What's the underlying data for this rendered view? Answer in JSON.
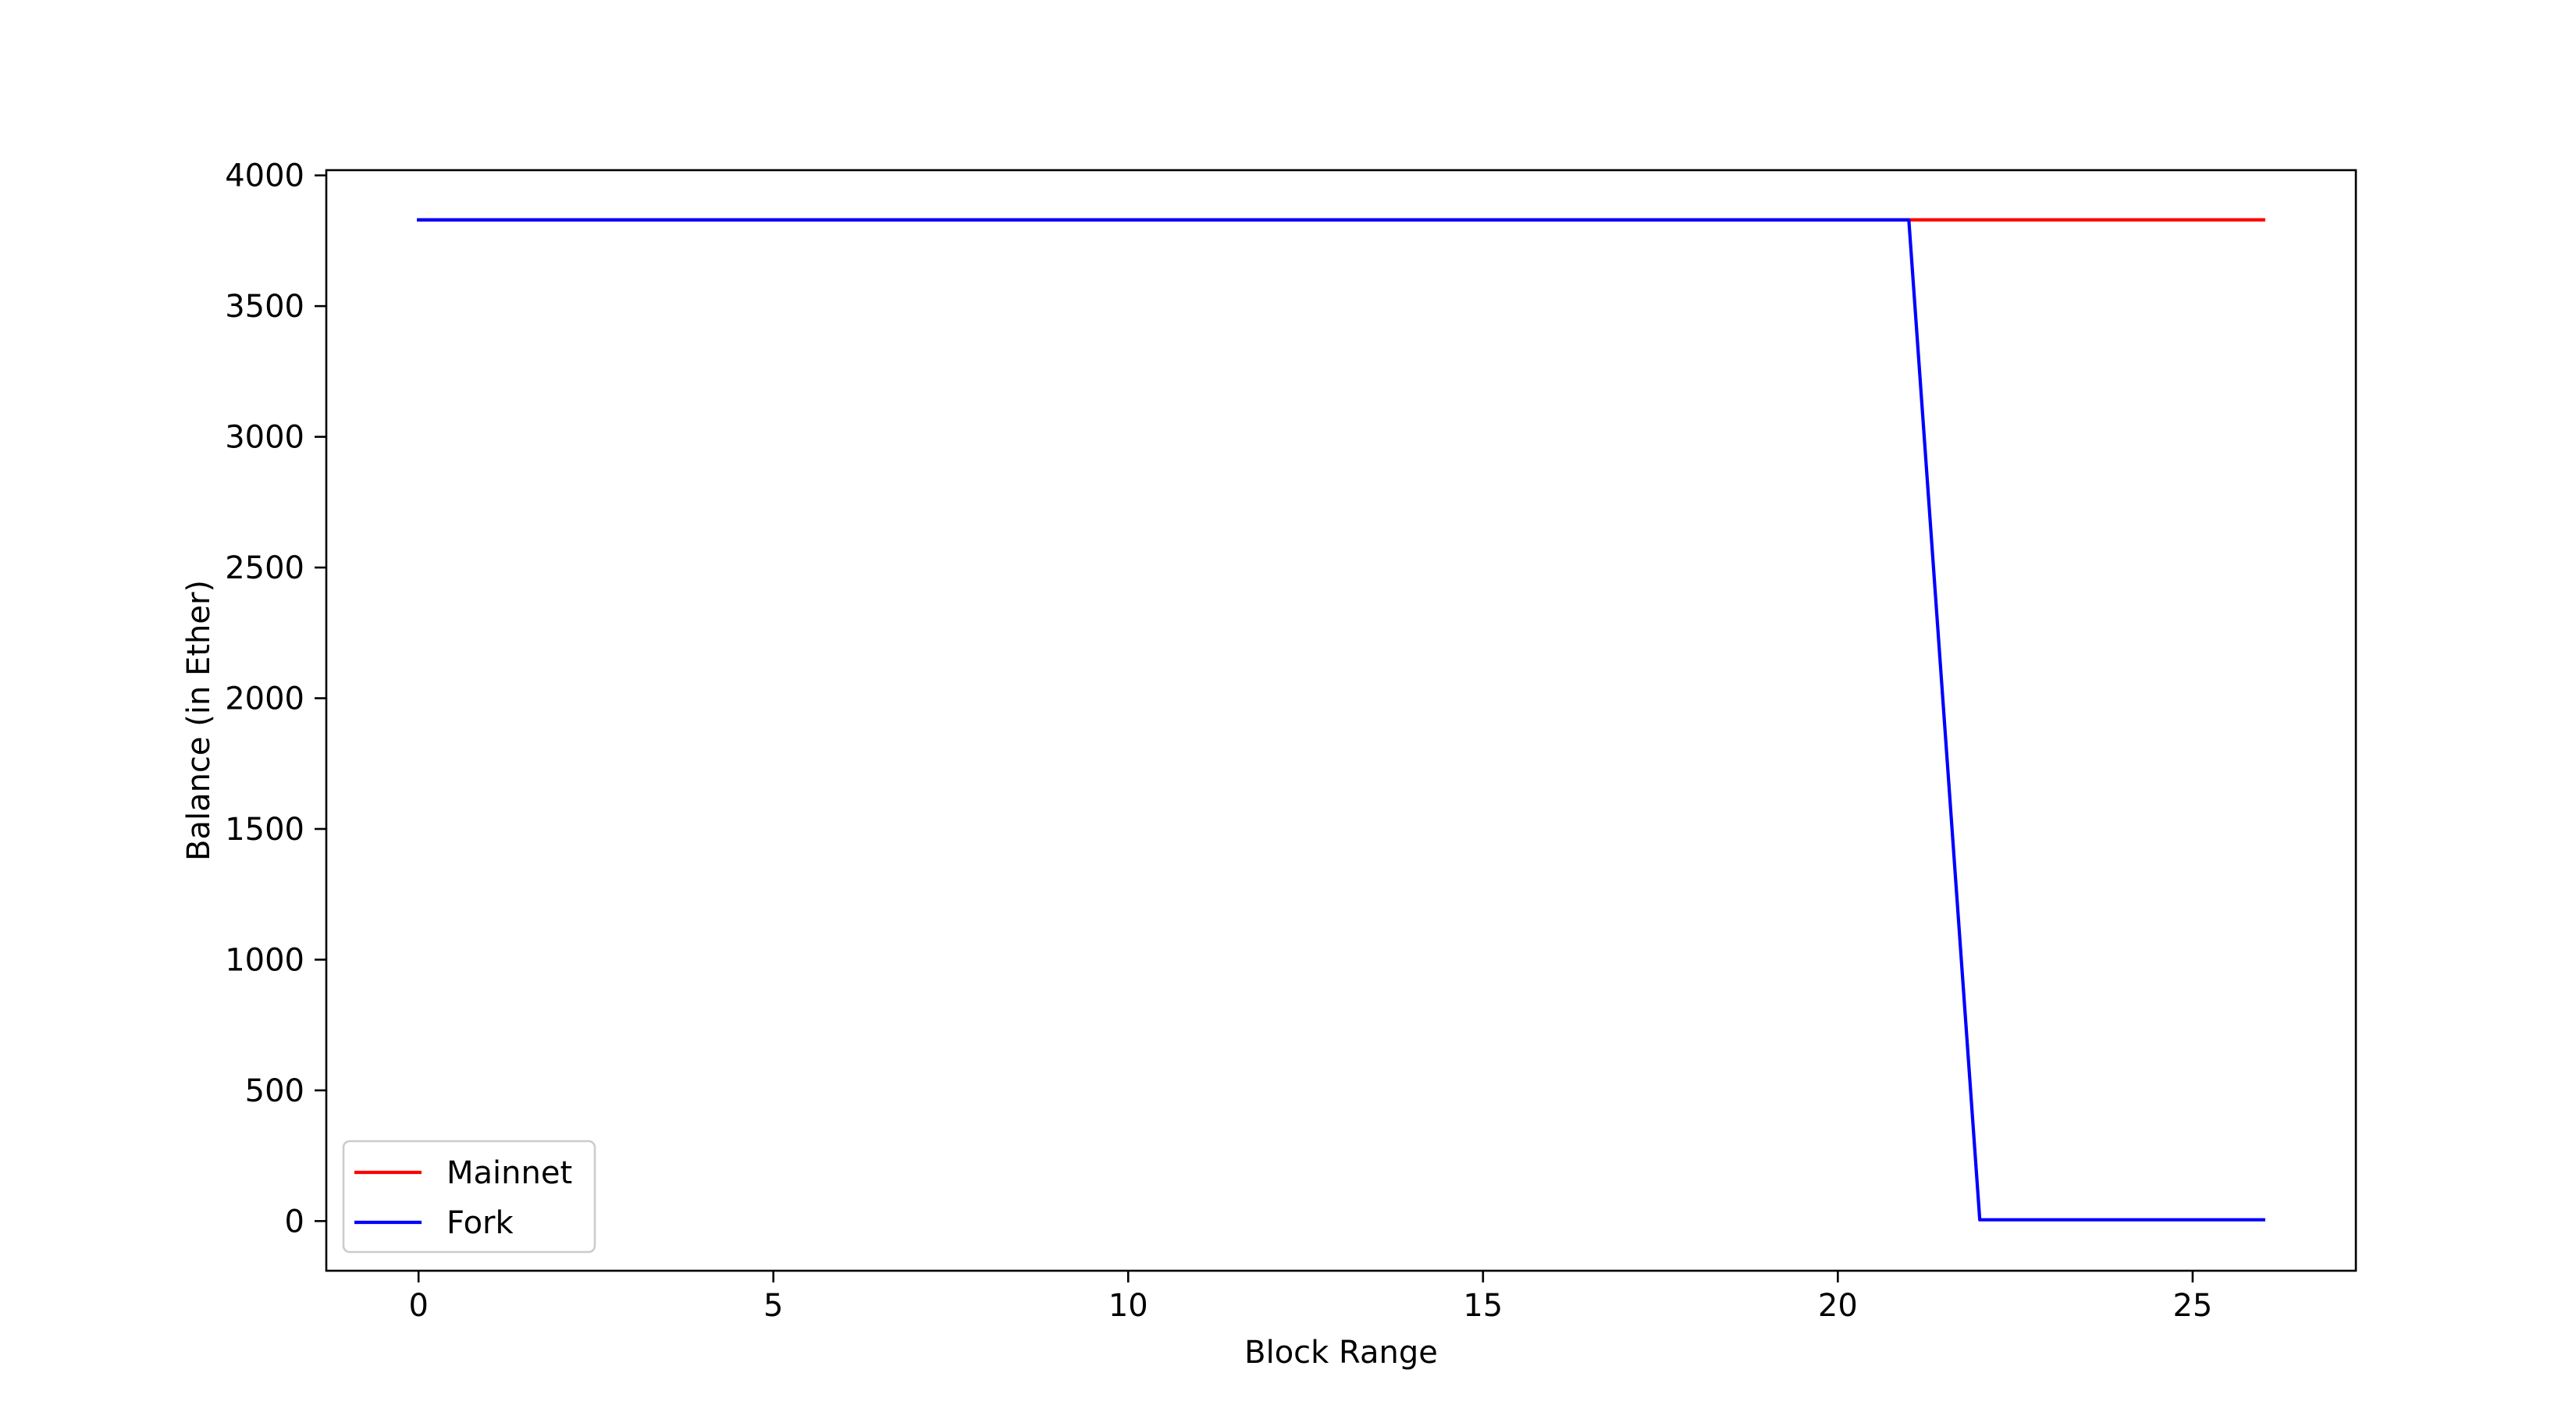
{
  "chart_data": {
    "type": "line",
    "title": "",
    "xlabel": "Block Range",
    "ylabel": "Balance (in Ether)",
    "xlim": [
      -1.3,
      27.3
    ],
    "ylim": [
      -190,
      4020
    ],
    "xticks": [
      0,
      5,
      10,
      15,
      20,
      25
    ],
    "yticks": [
      0,
      500,
      1000,
      1500,
      2000,
      2500,
      3000,
      3500,
      4000
    ],
    "grid": false,
    "legend_position": "lower-left",
    "x": [
      0,
      1,
      2,
      3,
      4,
      5,
      6,
      7,
      8,
      9,
      10,
      11,
      12,
      13,
      14,
      15,
      16,
      17,
      18,
      19,
      20,
      21,
      22,
      23,
      24,
      25,
      26
    ],
    "series": [
      {
        "name": "Mainnet",
        "color": "#ff0000",
        "values": [
          3830,
          3830,
          3830,
          3830,
          3830,
          3830,
          3830,
          3830,
          3830,
          3830,
          3830,
          3830,
          3830,
          3830,
          3830,
          3830,
          3830,
          3830,
          3830,
          3830,
          3830,
          3830,
          3830,
          3830,
          3830,
          3830,
          3830
        ]
      },
      {
        "name": "Fork",
        "color": "#0000ff",
        "values": [
          3830,
          3830,
          3830,
          3830,
          3830,
          3830,
          3830,
          3830,
          3830,
          3830,
          3830,
          3830,
          3830,
          3830,
          3830,
          3830,
          3830,
          3830,
          3830,
          3830,
          3830,
          3830,
          5,
          5,
          5,
          5,
          5
        ]
      }
    ]
  }
}
